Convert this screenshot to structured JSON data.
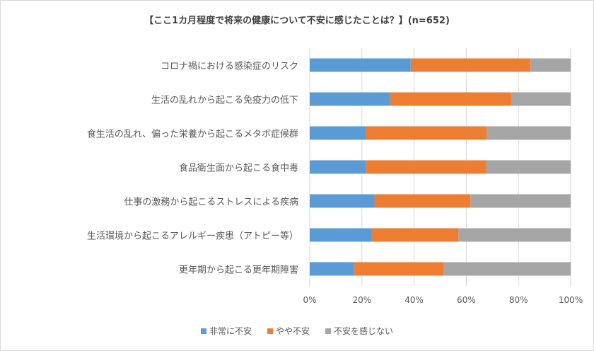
{
  "chart_data": {
    "type": "bar",
    "orientation": "horizontal",
    "stacked": "percent",
    "title": "【ここ1カ月程度で将来の健康について不安に感じたことは？】(n=652)",
    "categories": [
      "コロナ禍における感染症のリスク",
      "生活の乱れから起こる免疫力の低下",
      "食生活の乱れ、偏った栄養から起こるメタボ症候群",
      "食品衛生面から起こる食中毒",
      "仕事の激務から起こるストレスによる疾病",
      "生活環境から起こるアレルギー疾患（アトピー等）",
      "更年期から起こる更年期障害"
    ],
    "series": [
      {
        "name": "非常に不安",
        "color": "#5b9bd5",
        "values": [
          38.7,
          30.8,
          21.4,
          21.6,
          24.8,
          23.7,
          17.0
        ]
      },
      {
        "name": "やや不安",
        "color": "#ed7d31",
        "values": [
          45.9,
          46.4,
          46.4,
          46.0,
          36.8,
          33.3,
          34.3
        ]
      },
      {
        "name": "不安を感じない",
        "color": "#a5a5a5",
        "values": [
          15.4,
          22.8,
          32.2,
          32.4,
          38.4,
          43.0,
          48.7
        ]
      }
    ],
    "xticks": [
      "0%",
      "20%",
      "40%",
      "60%",
      "80%",
      "100%"
    ],
    "xlim": [
      0,
      100
    ],
    "grid": true,
    "legend": "bottom"
  }
}
